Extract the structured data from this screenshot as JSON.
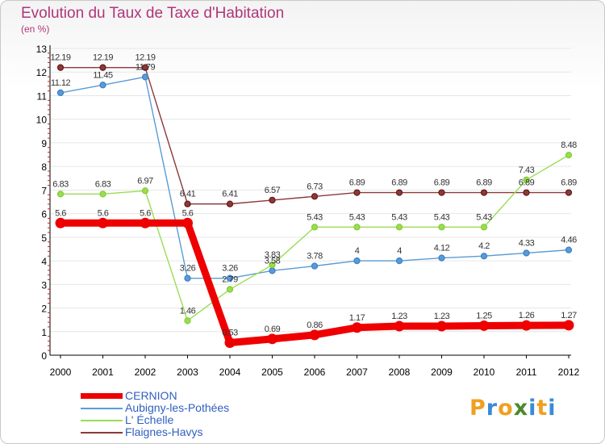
{
  "title": "Evolution du Taux de Taxe d'Habitation",
  "subtitle": "(en %)",
  "colors": {
    "title": "#b0357a",
    "axis": "#000000",
    "tick_marks": "#cc2222",
    "grid": "#e6e6e6",
    "legend_text": "#3060c0"
  },
  "chart_data": {
    "type": "line",
    "x": [
      "2000",
      "2001",
      "2002",
      "2003",
      "2004",
      "2005",
      "2006",
      "2007",
      "2008",
      "2009",
      "2010",
      "2011",
      "2012"
    ],
    "ylim": [
      0,
      13
    ],
    "yticks": [
      "0",
      "1",
      "2",
      "3",
      "4",
      "5",
      "6",
      "7",
      "8",
      "9",
      "10",
      "11",
      "12",
      "13"
    ],
    "grid": "horizontal",
    "legend_position": "bottom-left",
    "series": [
      {
        "name": "CERNION",
        "color": "#ee0000",
        "bold": true,
        "values": [
          5.6,
          5.6,
          5.6,
          5.6,
          0.53,
          0.69,
          0.86,
          1.17,
          1.23,
          1.23,
          1.25,
          1.26,
          1.27
        ],
        "labels": [
          "5.6",
          "5.6",
          "5.6",
          "5.6",
          "0.53",
          "0.69",
          "0.86",
          "1.17",
          "1.23",
          "1.23",
          "1.25",
          "1.26",
          "1.27"
        ]
      },
      {
        "name": "Aubigny-les-Pothées",
        "color": "#5b9bd5",
        "marker": "#3b82c8",
        "values": [
          11.12,
          11.45,
          11.79,
          3.26,
          3.26,
          3.58,
          3.78,
          4,
          4,
          4.12,
          4.2,
          4.33,
          4.46
        ],
        "labels": [
          "11.12",
          "11.45",
          "11.79",
          "3.26",
          "3.26",
          "3.58",
          "3.78",
          "4",
          "4",
          "4.12",
          "4.2",
          "4.33",
          "4.46"
        ]
      },
      {
        "name": "L' Échelle",
        "color": "#99dd55",
        "marker": "#88cc33",
        "values": [
          6.83,
          6.83,
          6.97,
          1.46,
          2.79,
          3.83,
          5.43,
          5.43,
          5.43,
          5.43,
          5.43,
          7.43,
          8.48
        ],
        "labels": [
          "6.83",
          "6.83",
          "6.97",
          "1.46",
          "2.79",
          "3.83",
          "5.43",
          "5.43",
          "5.43",
          "5.43",
          "5.43",
          "7.43",
          "8.48"
        ]
      },
      {
        "name": "Flaignes-Havys",
        "color": "#8b3a3a",
        "marker": "#6a1a1a",
        "values": [
          12.19,
          12.19,
          12.19,
          6.41,
          6.41,
          6.57,
          6.73,
          6.89,
          6.89,
          6.89,
          6.89,
          6.89,
          6.89
        ],
        "labels": [
          "12.19",
          "12.19",
          "12.19",
          "6.41",
          "6.41",
          "6.57",
          "6.73",
          "6.89",
          "6.89",
          "6.89",
          "6.89",
          "6.89",
          "6.89"
        ]
      }
    ]
  },
  "legend": [
    {
      "label": "CERNION",
      "color": "#ee0000",
      "bold": true
    },
    {
      "label": "Aubigny-les-Pothées",
      "color": "#5b9bd5",
      "bold": false
    },
    {
      "label": "L' Échelle",
      "color": "#99dd55",
      "bold": false
    },
    {
      "label": "Flaignes-Havys",
      "color": "#8b3a3a",
      "bold": false
    }
  ],
  "logo": {
    "letters": [
      "P",
      "r",
      "o",
      "x",
      "i",
      "t",
      "i"
    ],
    "colors": [
      "#f0a020",
      "#3a8ad8",
      "#f0a020",
      "#4a8a2a",
      "#3a8ad8",
      "#f0a020",
      "#3a8ad8"
    ]
  }
}
